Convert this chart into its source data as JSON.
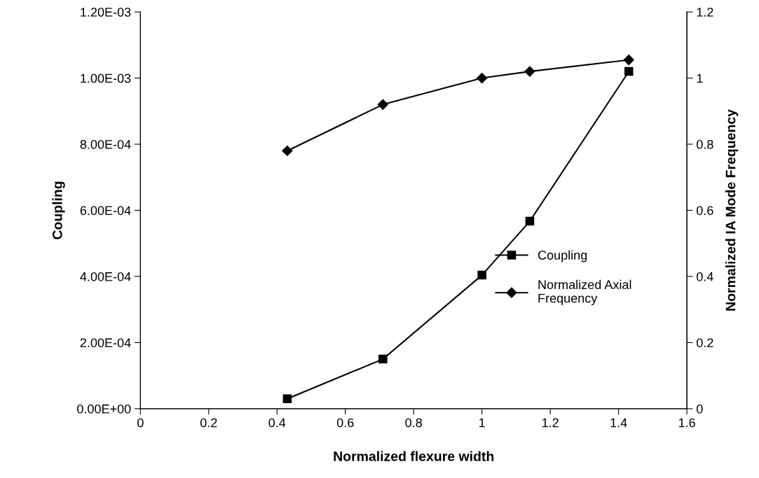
{
  "chart_data": {
    "type": "line",
    "xlabel": "Normalized flexure width",
    "ylabel": "Coupling",
    "y2label": "Normalized IA Mode Frequency",
    "x": [
      0.43,
      0.71,
      1.0,
      1.14,
      1.43
    ],
    "series": [
      {
        "name": "Coupling",
        "color": "#000000",
        "marker": "square",
        "values": [
          3e-05,
          0.00015,
          0.000404,
          0.000567,
          0.00102
        ]
      },
      {
        "name": "Normalized Axial Frequency",
        "color": "#000000",
        "marker": "diamond",
        "axis": "y2",
        "values": [
          0.78,
          0.92,
          1.0,
          1.02,
          1.055
        ]
      }
    ],
    "xlim": [
      0,
      1.6
    ],
    "xticks": [
      0,
      0.2,
      0.4,
      0.6,
      0.8,
      1,
      1.2,
      1.4,
      1.6
    ],
    "ylim": [
      0,
      0.0012
    ],
    "yticks": [
      {
        "value": 0,
        "label": "0.00E+00"
      },
      {
        "value": 0.0002,
        "label": "2.00E-04"
      },
      {
        "value": 0.0004,
        "label": "4.00E-04"
      },
      {
        "value": 0.0006,
        "label": "6.00E-04"
      },
      {
        "value": 0.0008,
        "label": "8.00E-04"
      },
      {
        "value": 0.001,
        "label": "1.00E-03"
      },
      {
        "value": 0.0012,
        "label": "1.20E-03"
      }
    ],
    "y2lim": [
      0,
      1.2
    ],
    "y2ticks": [
      0,
      0.2,
      0.4,
      0.6,
      0.8,
      1,
      1.2
    ],
    "legend": "center right",
    "grid": false,
    "line_style": "solid"
  }
}
